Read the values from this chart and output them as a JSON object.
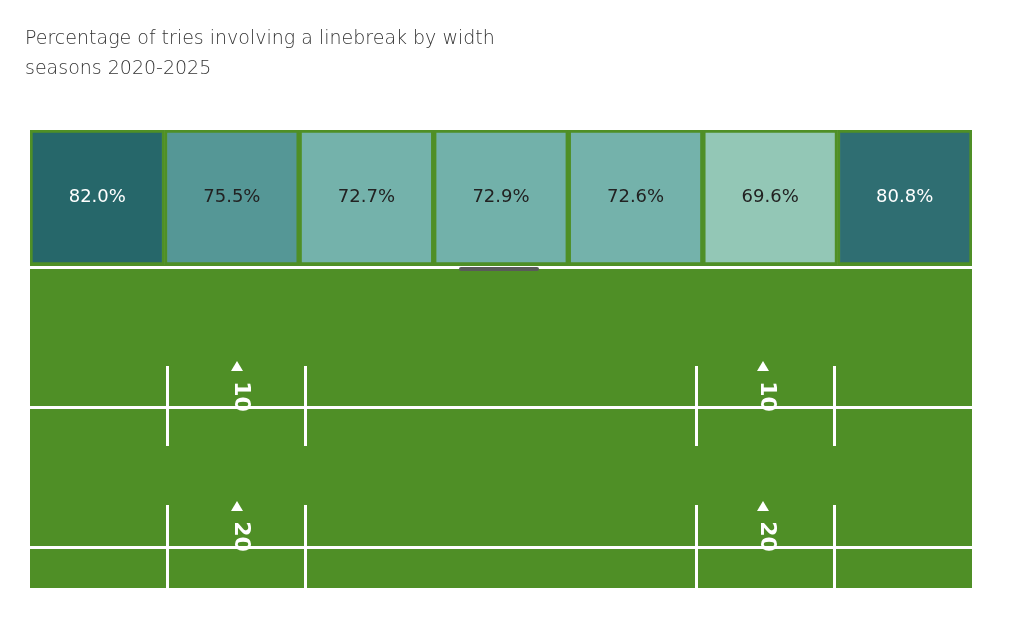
{
  "chart_data": {
    "type": "heatmap",
    "title": "Percentage of tries involving a linebreak by width",
    "subtitle": "seasons 2020-2025",
    "categories": [
      null,
      null,
      null,
      null,
      null,
      null,
      null
    ],
    "y_categories": [
      null
    ],
    "cells": [
      [
        82.0,
        75.5,
        72.7,
        72.9,
        72.6,
        69.6,
        80.8
      ]
    ],
    "cell_labels": [
      [
        "82.0%",
        "75.5%",
        "72.7%",
        "72.9%",
        "72.6%",
        "69.6%",
        "80.8%"
      ]
    ],
    "colors": [
      "#26676a",
      "#559796",
      "#74b2ab",
      "#72b1aa",
      "#74b2ab",
      "#93c7b6",
      "#2f6e72"
    ],
    "annotations": [
      "10",
      "10",
      "20",
      "20"
    ]
  }
}
